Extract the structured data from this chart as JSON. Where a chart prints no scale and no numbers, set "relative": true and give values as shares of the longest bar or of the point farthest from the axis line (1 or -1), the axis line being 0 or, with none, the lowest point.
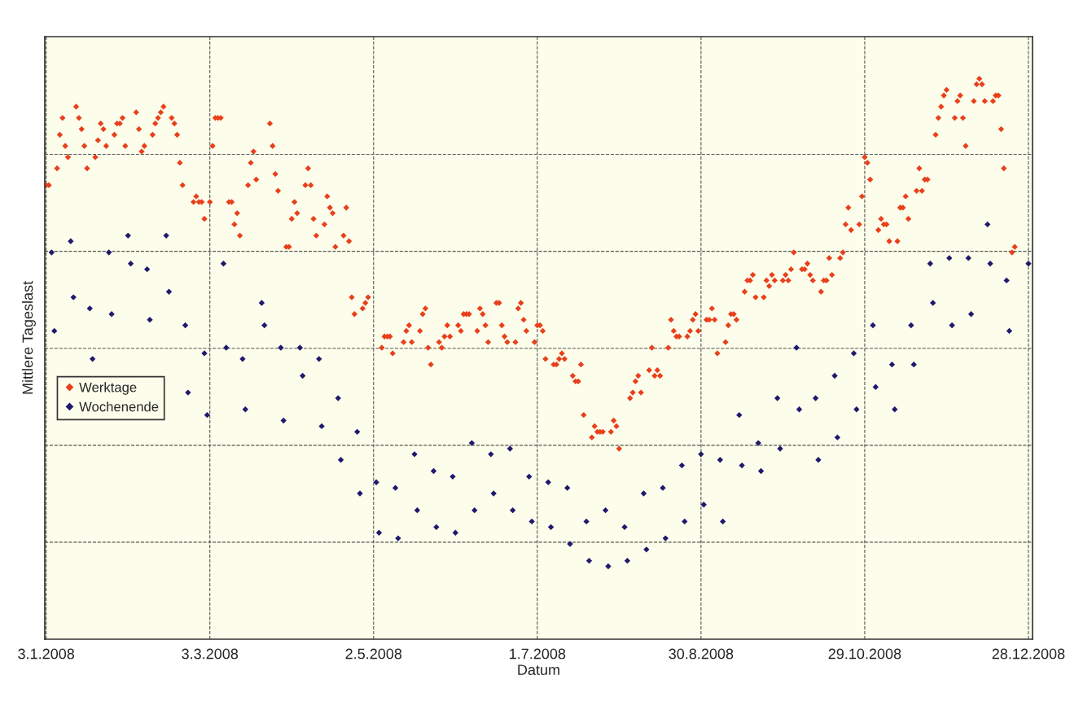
{
  "chart_data": {
    "type": "scatter",
    "xlabel": "Datum",
    "ylabel": "Mittlere Tageslast",
    "relative": true,
    "grid": true,
    "legend": "left",
    "marker": "diamond",
    "xlim": [
      "2008-01-02T12:00",
      "2008-12-29T12:00"
    ],
    "xticks": [
      {
        "value": "2008-01-03",
        "label": "3.1.2008"
      },
      {
        "value": "2008-03-03",
        "label": "3.3.2008"
      },
      {
        "value": "2008-05-02",
        "label": "2.5.2008"
      },
      {
        "value": "2008-07-01",
        "label": "1.7.2008"
      },
      {
        "value": "2008-08-30",
        "label": "30.8.2008"
      },
      {
        "value": "2008-10-29",
        "label": "29.10.2008"
      },
      {
        "value": "2008-12-28",
        "label": "28.12.2008"
      }
    ],
    "series": [
      {
        "name": "Werktage",
        "color": "#e8401c",
        "x": [
          "2008-01-03",
          "2008-01-04",
          "2008-01-07",
          "2008-01-08",
          "2008-01-09",
          "2008-01-10",
          "2008-01-11",
          "2008-01-14",
          "2008-01-15",
          "2008-01-16",
          "2008-01-17",
          "2008-01-18",
          "2008-01-21",
          "2008-01-22",
          "2008-01-23",
          "2008-01-24",
          "2008-01-25",
          "2008-01-28",
          "2008-01-29",
          "2008-01-30",
          "2008-01-31",
          "2008-02-01",
          "2008-02-05",
          "2008-02-06",
          "2008-02-07",
          "2008-02-08",
          "2008-02-11",
          "2008-02-12",
          "2008-02-13",
          "2008-02-14",
          "2008-02-15",
          "2008-02-18",
          "2008-02-19",
          "2008-02-20",
          "2008-02-21",
          "2008-02-22",
          "2008-02-26",
          "2008-02-27",
          "2008-02-28",
          "2008-02-29",
          "2008-03-01",
          "2008-03-03",
          "2008-03-04",
          "2008-03-05",
          "2008-03-06",
          "2008-03-07",
          "2008-03-10",
          "2008-03-11",
          "2008-03-12",
          "2008-03-13",
          "2008-03-14",
          "2008-03-17",
          "2008-03-18",
          "2008-03-19",
          "2008-03-20",
          "2008-03-25",
          "2008-03-26",
          "2008-03-27",
          "2008-03-28",
          "2008-03-31",
          "2008-04-01",
          "2008-04-02",
          "2008-04-03",
          "2008-04-04",
          "2008-04-07",
          "2008-04-08",
          "2008-04-09",
          "2008-04-10",
          "2008-04-11",
          "2008-04-14",
          "2008-04-15",
          "2008-04-16",
          "2008-04-17",
          "2008-04-18",
          "2008-04-21",
          "2008-04-22",
          "2008-04-23",
          "2008-04-24",
          "2008-04-25",
          "2008-04-28",
          "2008-04-29",
          "2008-04-30",
          "2008-05-05",
          "2008-05-06",
          "2008-05-07",
          "2008-05-08",
          "2008-05-09",
          "2008-05-13",
          "2008-05-14",
          "2008-05-15",
          "2008-05-16",
          "2008-05-19",
          "2008-05-20",
          "2008-05-21",
          "2008-05-22",
          "2008-05-23",
          "2008-05-26",
          "2008-05-27",
          "2008-05-28",
          "2008-05-29",
          "2008-05-30",
          "2008-06-02",
          "2008-06-03",
          "2008-06-04",
          "2008-06-05",
          "2008-06-06",
          "2008-06-09",
          "2008-06-10",
          "2008-06-11",
          "2008-06-12",
          "2008-06-13",
          "2008-06-16",
          "2008-06-17",
          "2008-06-18",
          "2008-06-19",
          "2008-06-20",
          "2008-06-23",
          "2008-06-24",
          "2008-06-25",
          "2008-06-26",
          "2008-06-27",
          "2008-06-30",
          "2008-07-01",
          "2008-07-02",
          "2008-07-03",
          "2008-07-04",
          "2008-07-07",
          "2008-07-08",
          "2008-07-09",
          "2008-07-10",
          "2008-07-11",
          "2008-07-14",
          "2008-07-15",
          "2008-07-16",
          "2008-07-17",
          "2008-07-18",
          "2008-07-21",
          "2008-07-22",
          "2008-07-23",
          "2008-07-24",
          "2008-07-25",
          "2008-07-28",
          "2008-07-29",
          "2008-07-30",
          "2008-07-31",
          "2008-08-04",
          "2008-08-05",
          "2008-08-06",
          "2008-08-07",
          "2008-08-08",
          "2008-08-11",
          "2008-08-12",
          "2008-08-13",
          "2008-08-14",
          "2008-08-15",
          "2008-08-18",
          "2008-08-19",
          "2008-08-20",
          "2008-08-21",
          "2008-08-22",
          "2008-08-25",
          "2008-08-26",
          "2008-08-27",
          "2008-08-28",
          "2008-08-29",
          "2008-09-01",
          "2008-09-02",
          "2008-09-03",
          "2008-09-04",
          "2008-09-05",
          "2008-09-08",
          "2008-09-09",
          "2008-09-10",
          "2008-09-11",
          "2008-09-12",
          "2008-09-15",
          "2008-09-16",
          "2008-09-17",
          "2008-09-18",
          "2008-09-19",
          "2008-09-22",
          "2008-09-23",
          "2008-09-24",
          "2008-09-25",
          "2008-09-26",
          "2008-09-29",
          "2008-09-30",
          "2008-10-01",
          "2008-10-02",
          "2008-10-03",
          "2008-10-06",
          "2008-10-07",
          "2008-10-08",
          "2008-10-09",
          "2008-10-10",
          "2008-10-13",
          "2008-10-14",
          "2008-10-15",
          "2008-10-16",
          "2008-10-17",
          "2008-10-20",
          "2008-10-21",
          "2008-10-22",
          "2008-10-23",
          "2008-10-24",
          "2008-10-27",
          "2008-10-28",
          "2008-10-29",
          "2008-10-30",
          "2008-10-31",
          "2008-11-03",
          "2008-11-04",
          "2008-11-05",
          "2008-11-06",
          "2008-11-07",
          "2008-11-10",
          "2008-11-11",
          "2008-11-12",
          "2008-11-13",
          "2008-11-14",
          "2008-11-17",
          "2008-11-18",
          "2008-11-19",
          "2008-11-20",
          "2008-11-21",
          "2008-11-24",
          "2008-11-25",
          "2008-11-26",
          "2008-11-27",
          "2008-11-28",
          "2008-12-01",
          "2008-12-02",
          "2008-12-03",
          "2008-12-04",
          "2008-12-05",
          "2008-12-08",
          "2008-12-09",
          "2008-12-10",
          "2008-12-11",
          "2008-12-12",
          "2008-12-15",
          "2008-12-16",
          "2008-12-17",
          "2008-12-18",
          "2008-12-19",
          "2008-12-22",
          "2008-12-23"
        ],
        "values": [
          0.81,
          0.81,
          0.84,
          0.9,
          0.93,
          0.88,
          0.86,
          0.95,
          0.93,
          0.91,
          0.88,
          0.84,
          0.86,
          0.89,
          0.92,
          0.91,
          0.88,
          0.9,
          0.92,
          0.92,
          0.93,
          0.88,
          0.94,
          0.91,
          0.87,
          0.88,
          0.9,
          0.92,
          0.93,
          0.94,
          0.95,
          0.93,
          0.92,
          0.9,
          0.85,
          0.81,
          0.78,
          0.79,
          0.78,
          0.78,
          0.75,
          0.78,
          0.88,
          0.93,
          0.93,
          0.93,
          0.78,
          0.78,
          0.74,
          0.76,
          0.72,
          0.81,
          0.85,
          0.87,
          0.82,
          0.92,
          0.88,
          0.83,
          0.8,
          0.7,
          0.7,
          0.75,
          0.78,
          0.76,
          0.81,
          0.84,
          0.81,
          0.75,
          0.72,
          0.74,
          0.79,
          0.77,
          0.76,
          0.7,
          0.72,
          0.77,
          0.71,
          0.61,
          0.58,
          0.59,
          0.6,
          0.61,
          0.52,
          0.54,
          0.54,
          0.54,
          0.51,
          0.53,
          0.55,
          0.56,
          0.53,
          0.55,
          0.58,
          0.59,
          0.52,
          0.49,
          0.53,
          0.52,
          0.54,
          0.56,
          0.54,
          0.56,
          0.55,
          0.58,
          0.58,
          0.58,
          0.55,
          0.59,
          0.58,
          0.56,
          0.53,
          0.6,
          0.6,
          0.56,
          0.54,
          0.53,
          0.53,
          0.59,
          0.6,
          0.57,
          0.55,
          0.53,
          0.56,
          0.56,
          0.55,
          0.5,
          0.49,
          0.49,
          0.5,
          0.51,
          0.5,
          0.47,
          0.46,
          0.46,
          0.49,
          0.4,
          0.36,
          0.38,
          0.37,
          0.37,
          0.37,
          0.37,
          0.39,
          0.38,
          0.34,
          0.43,
          0.44,
          0.46,
          0.47,
          0.44,
          0.48,
          0.52,
          0.47,
          0.48,
          0.47,
          0.52,
          0.57,
          0.55,
          0.54,
          0.54,
          0.54,
          0.55,
          0.57,
          0.58,
          0.55,
          0.57,
          0.57,
          0.59,
          0.57,
          0.51,
          0.53,
          0.56,
          0.58,
          0.58,
          0.57,
          0.62,
          0.64,
          0.64,
          0.65,
          0.61,
          0.61,
          0.64,
          0.63,
          0.65,
          0.64,
          0.64,
          0.65,
          0.64,
          0.66,
          0.69,
          0.66,
          0.66,
          0.67,
          0.65,
          0.64,
          0.62,
          0.64,
          0.64,
          0.68,
          0.65,
          0.68,
          0.69,
          0.74,
          0.77,
          0.73,
          0.74,
          0.79,
          0.86,
          0.85,
          0.82,
          0.73,
          0.75,
          0.74,
          0.74,
          0.71,
          0.71,
          0.77,
          0.77,
          0.79,
          0.75,
          0.8,
          0.84,
          0.8,
          0.82,
          0.82,
          0.9,
          0.93,
          0.95,
          0.97,
          0.98,
          0.93,
          0.96,
          0.97,
          0.93,
          0.88,
          0.96,
          0.99,
          1,
          0.99,
          0.96,
          0.96,
          0.97,
          0.97,
          0.91,
          0.84,
          0.69,
          0.7
        ]
      },
      {
        "name": "Wochenende",
        "color": "#1e1a6e",
        "x": [
          "2008-01-05",
          "2008-01-06",
          "2008-01-12",
          "2008-01-13",
          "2008-01-19",
          "2008-01-20",
          "2008-01-26",
          "2008-01-27",
          "2008-02-02",
          "2008-02-03",
          "2008-02-09",
          "2008-02-10",
          "2008-02-16",
          "2008-02-17",
          "2008-02-23",
          "2008-02-24",
          "2008-03-01",
          "2008-03-02",
          "2008-03-08",
          "2008-03-09",
          "2008-03-15",
          "2008-03-16",
          "2008-03-22",
          "2008-03-23",
          "2008-03-29",
          "2008-03-30",
          "2008-04-05",
          "2008-04-06",
          "2008-04-12",
          "2008-04-13",
          "2008-04-19",
          "2008-04-20",
          "2008-04-26",
          "2008-04-27",
          "2008-05-03",
          "2008-05-04",
          "2008-05-10",
          "2008-05-11",
          "2008-05-17",
          "2008-05-18",
          "2008-05-24",
          "2008-05-25",
          "2008-05-31",
          "2008-06-01",
          "2008-06-07",
          "2008-06-08",
          "2008-06-14",
          "2008-06-15",
          "2008-06-21",
          "2008-06-22",
          "2008-06-28",
          "2008-06-29",
          "2008-07-05",
          "2008-07-06",
          "2008-07-12",
          "2008-07-13",
          "2008-07-19",
          "2008-07-20",
          "2008-07-26",
          "2008-07-27",
          "2008-08-02",
          "2008-08-03",
          "2008-08-09",
          "2008-08-10",
          "2008-08-16",
          "2008-08-17",
          "2008-08-23",
          "2008-08-24",
          "2008-08-30",
          "2008-08-31",
          "2008-09-06",
          "2008-09-07",
          "2008-09-13",
          "2008-09-14",
          "2008-09-20",
          "2008-09-21",
          "2008-09-27",
          "2008-09-28",
          "2008-10-04",
          "2008-10-05",
          "2008-10-11",
          "2008-10-12",
          "2008-10-18",
          "2008-10-19",
          "2008-10-25",
          "2008-10-26",
          "2008-11-01",
          "2008-11-02",
          "2008-11-08",
          "2008-11-09",
          "2008-11-15",
          "2008-11-16",
          "2008-11-22",
          "2008-11-23",
          "2008-11-29",
          "2008-11-30",
          "2008-12-06",
          "2008-12-07",
          "2008-12-13",
          "2008-12-14",
          "2008-12-20",
          "2008-12-21",
          "2008-12-28"
        ],
        "values": [
          0.69,
          0.55,
          0.71,
          0.61,
          0.59,
          0.5,
          0.69,
          0.58,
          0.72,
          0.67,
          0.66,
          0.57,
          0.72,
          0.62,
          0.56,
          0.44,
          0.51,
          0.4,
          0.67,
          0.52,
          0.5,
          0.41,
          0.6,
          0.56,
          0.52,
          0.39,
          0.52,
          0.47,
          0.5,
          0.38,
          0.43,
          0.32,
          0.37,
          0.26,
          0.28,
          0.19,
          0.27,
          0.18,
          0.33,
          0.23,
          0.3,
          0.2,
          0.29,
          0.19,
          0.35,
          0.23,
          0.33,
          0.26,
          0.34,
          0.23,
          0.29,
          0.21,
          0.28,
          0.2,
          0.27,
          0.17,
          0.21,
          0.14,
          0.23,
          0.13,
          0.2,
          0.14,
          0.26,
          0.16,
          0.27,
          0.18,
          0.31,
          0.21,
          0.33,
          0.24,
          0.32,
          0.21,
          0.4,
          0.31,
          0.35,
          0.3,
          0.43,
          0.34,
          0.52,
          0.41,
          0.43,
          0.32,
          0.47,
          0.36,
          0.51,
          0.41,
          0.56,
          0.45,
          0.49,
          0.41,
          0.56,
          0.49,
          0.67,
          0.6,
          0.68,
          0.56,
          0.68,
          0.58,
          0.74,
          0.67,
          0.64,
          0.55,
          0.67
        ]
      }
    ]
  }
}
